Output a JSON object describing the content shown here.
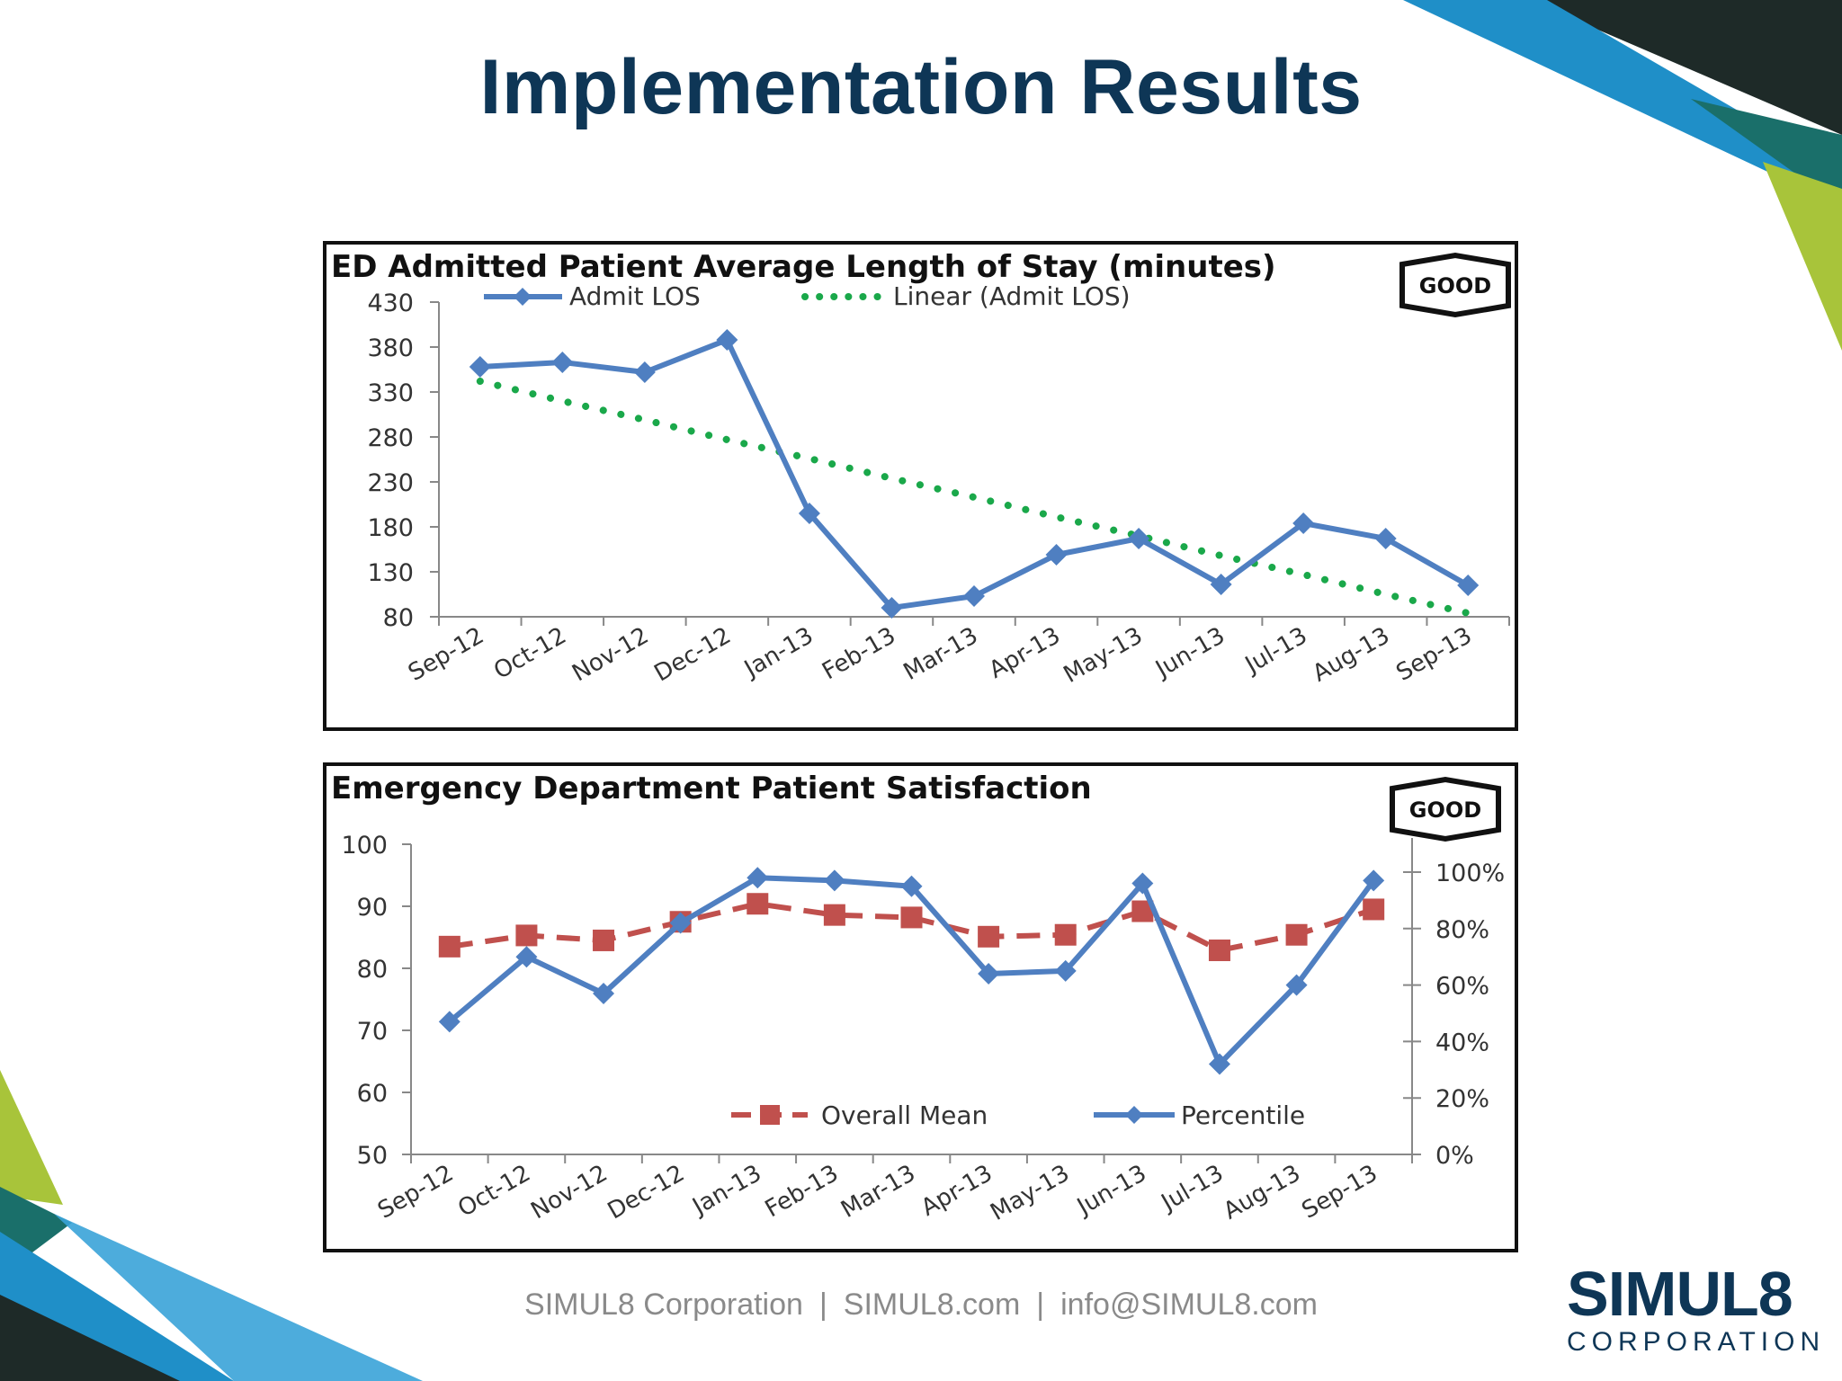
{
  "slide": {
    "title": "Implementation Results",
    "footer": {
      "company": "SIMUL8 Corporation",
      "website": "SIMUL8.com",
      "email": "info@SIMUL8.com"
    },
    "logo": {
      "main": "SIMUL8",
      "sub": "CORPORATION"
    },
    "colors": {
      "title": "#0e3656",
      "deco_green": "#a8c43a",
      "deco_blue": "#1f8fc8",
      "deco_teal": "#1a6f6a",
      "deco_dark": "#1e2a28"
    }
  },
  "chart_data": [
    {
      "type": "line",
      "title": "ED Admitted Patient Average Length of Stay (minutes)",
      "badge": "GOOD",
      "categories": [
        "Sep-12",
        "Oct-12",
        "Nov-12",
        "Dec-12",
        "Jan-13",
        "Feb-13",
        "Mar-13",
        "Apr-13",
        "May-13",
        "Jun-13",
        "Jul-13",
        "Aug-13",
        "Sep-13"
      ],
      "series": [
        {
          "name": "Admit LOS",
          "values": [
            358,
            363,
            352,
            388,
            195,
            90,
            103,
            149,
            167,
            116,
            184,
            167,
            115
          ],
          "color": "#4f7fc1",
          "marker": "diamond"
        },
        {
          "name": "Linear (Admit LOS)",
          "values": [
            342,
            320,
            299,
            277,
            256,
            234,
            213,
            191,
            170,
            148,
            127,
            105,
            84
          ],
          "color": "#1aa84a",
          "style": "dotted"
        }
      ],
      "y_ticks": [
        "430",
        "380",
        "330",
        "280",
        "230",
        "180",
        "130",
        "80"
      ],
      "ylim": [
        80,
        430
      ],
      "legend": "top",
      "grid": false
    },
    {
      "type": "line",
      "title": "Emergency Department Patient Satisfaction",
      "badge": "GOOD",
      "categories": [
        "Sep-12",
        "Oct-12",
        "Nov-12",
        "Dec-12",
        "Jan-13",
        "Feb-13",
        "Mar-13",
        "Apr-13",
        "May-13",
        "Jun-13",
        "Jul-13",
        "Aug-13",
        "Sep-13"
      ],
      "series": [
        {
          "name": "Overall Mean",
          "axis": "left",
          "values": [
            83.5,
            85.3,
            84.5,
            87.5,
            90.4,
            88.6,
            88.2,
            85.1,
            85.4,
            89.2,
            82.9,
            85.4,
            89.5
          ],
          "color": "#c0504d",
          "style": "dashed",
          "marker": "square"
        },
        {
          "name": "Percentile",
          "axis": "right",
          "values": [
            47,
            70,
            57,
            82,
            98,
            97,
            95,
            64,
            65,
            96,
            32,
            60,
            97
          ],
          "color": "#4f7fc1",
          "marker": "diamond"
        }
      ],
      "y_ticks": [
        "100",
        "90",
        "80",
        "70",
        "60",
        "50"
      ],
      "ylim": [
        50,
        100
      ],
      "y2_ticks": [
        "100%",
        "80%",
        "60%",
        "40%",
        "20%",
        "0%"
      ],
      "y2lim": [
        0,
        100
      ],
      "legend": "bottom-center",
      "grid": false
    }
  ]
}
